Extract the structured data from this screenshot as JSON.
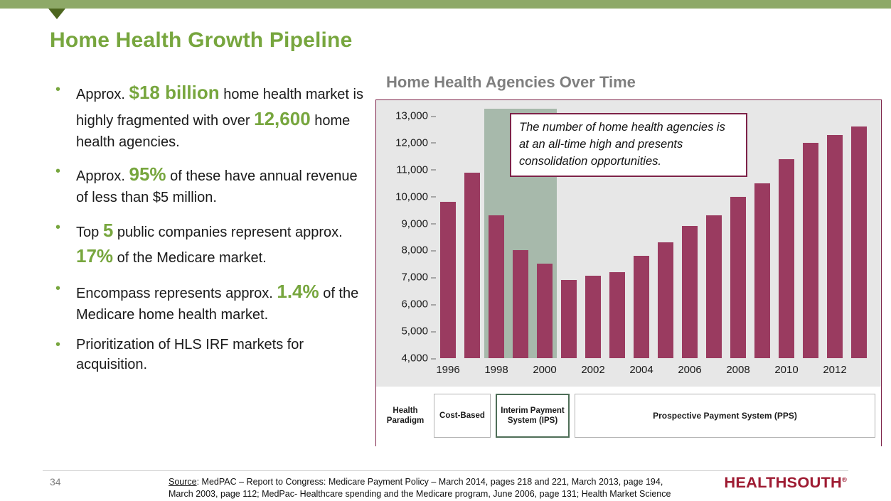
{
  "colors": {
    "accent": "#77a63e",
    "topbar": "#8ea968",
    "tri": "#4d661f",
    "bar": "#9a3b60",
    "panel-border": "#7d2248",
    "band": "#a7b9ab",
    "chart-bg": "#e7e7e7",
    "title-gray": "#7f7f7f",
    "box-border": "#b3b3b3",
    "ips-border": "#4e6e57",
    "logo": "#9e1b32"
  },
  "slide": {
    "title": "Home Health Growth Pipeline",
    "page_number": "34"
  },
  "bullets": [
    [
      {
        "text": "Approx. ",
        "highlight": false
      },
      {
        "text": "$18 billion",
        "highlight": true
      },
      {
        "text": " home health market is highly fragmented with over ",
        "highlight": false
      },
      {
        "text": "12,600",
        "highlight": true
      },
      {
        "text": " home health agencies.",
        "highlight": false
      }
    ],
    [
      {
        "text": "Approx. ",
        "highlight": false
      },
      {
        "text": "95%",
        "highlight": true
      },
      {
        "text": " of these have annual revenue of less than $5 million.",
        "highlight": false
      }
    ],
    [
      {
        "text": "Top ",
        "highlight": false
      },
      {
        "text": "5",
        "highlight": true
      },
      {
        "text": " public companies represent approx. ",
        "highlight": false
      },
      {
        "text": "17%",
        "highlight": true
      },
      {
        "text": " of the Medicare market.",
        "highlight": false
      }
    ],
    [
      {
        "text": "Encompass represents approx. ",
        "highlight": false
      },
      {
        "text": "1.4%",
        "highlight": true
      },
      {
        "text": " of the Medicare home health market.",
        "highlight": false
      }
    ],
    [
      {
        "text": "Prioritization of HLS IRF markets for acquisition.",
        "highlight": false
      }
    ]
  ],
  "chart_data": {
    "type": "bar",
    "title": "Home Health Agencies Over Time",
    "x": [
      1996,
      1997,
      1998,
      1999,
      2000,
      2001,
      2002,
      2003,
      2004,
      2005,
      2006,
      2007,
      2008,
      2009,
      2010,
      2011,
      2012,
      2013
    ],
    "values": [
      9800,
      10900,
      9300,
      8000,
      7500,
      6900,
      7050,
      7200,
      7800,
      8300,
      8900,
      9300,
      10000,
      10500,
      11400,
      12000,
      12300,
      12600
    ],
    "ylim": [
      4000,
      13000
    ],
    "ytick_step": 1000,
    "xtick_labels": [
      "1996",
      "1998",
      "2000",
      "2002",
      "2004",
      "2006",
      "2008",
      "2010",
      "2012"
    ],
    "bar_color": "#9a3b60",
    "highlight_band": {
      "from": 1998,
      "to": 2000,
      "meaning": "Interim Payment System (IPS) era"
    },
    "annotation": "The number of home health agencies is at an all-time high and presents consolidation opportunities.",
    "legend_position": "none",
    "grid": false
  },
  "payment_timeline": {
    "header": "Health Paradigm",
    "periods": [
      "Cost-Based",
      "Interim Payment System (IPS)",
      "Prospective Payment System (PPS)"
    ]
  },
  "footer": {
    "page_number": "34",
    "source_label": "Source",
    "source_rest1": ": MedPAC – Report to Congress: Medicare Payment Policy – March 2014, pages 218 and 221, March 2013, page 194,",
    "source_line2": "March 2003, page 112; MedPac- Healthcare spending and the Medicare program, June 2006, page 131; Health Market Science",
    "logo_text": "HEALTHSOUTH",
    "logo_reg": "®"
  }
}
